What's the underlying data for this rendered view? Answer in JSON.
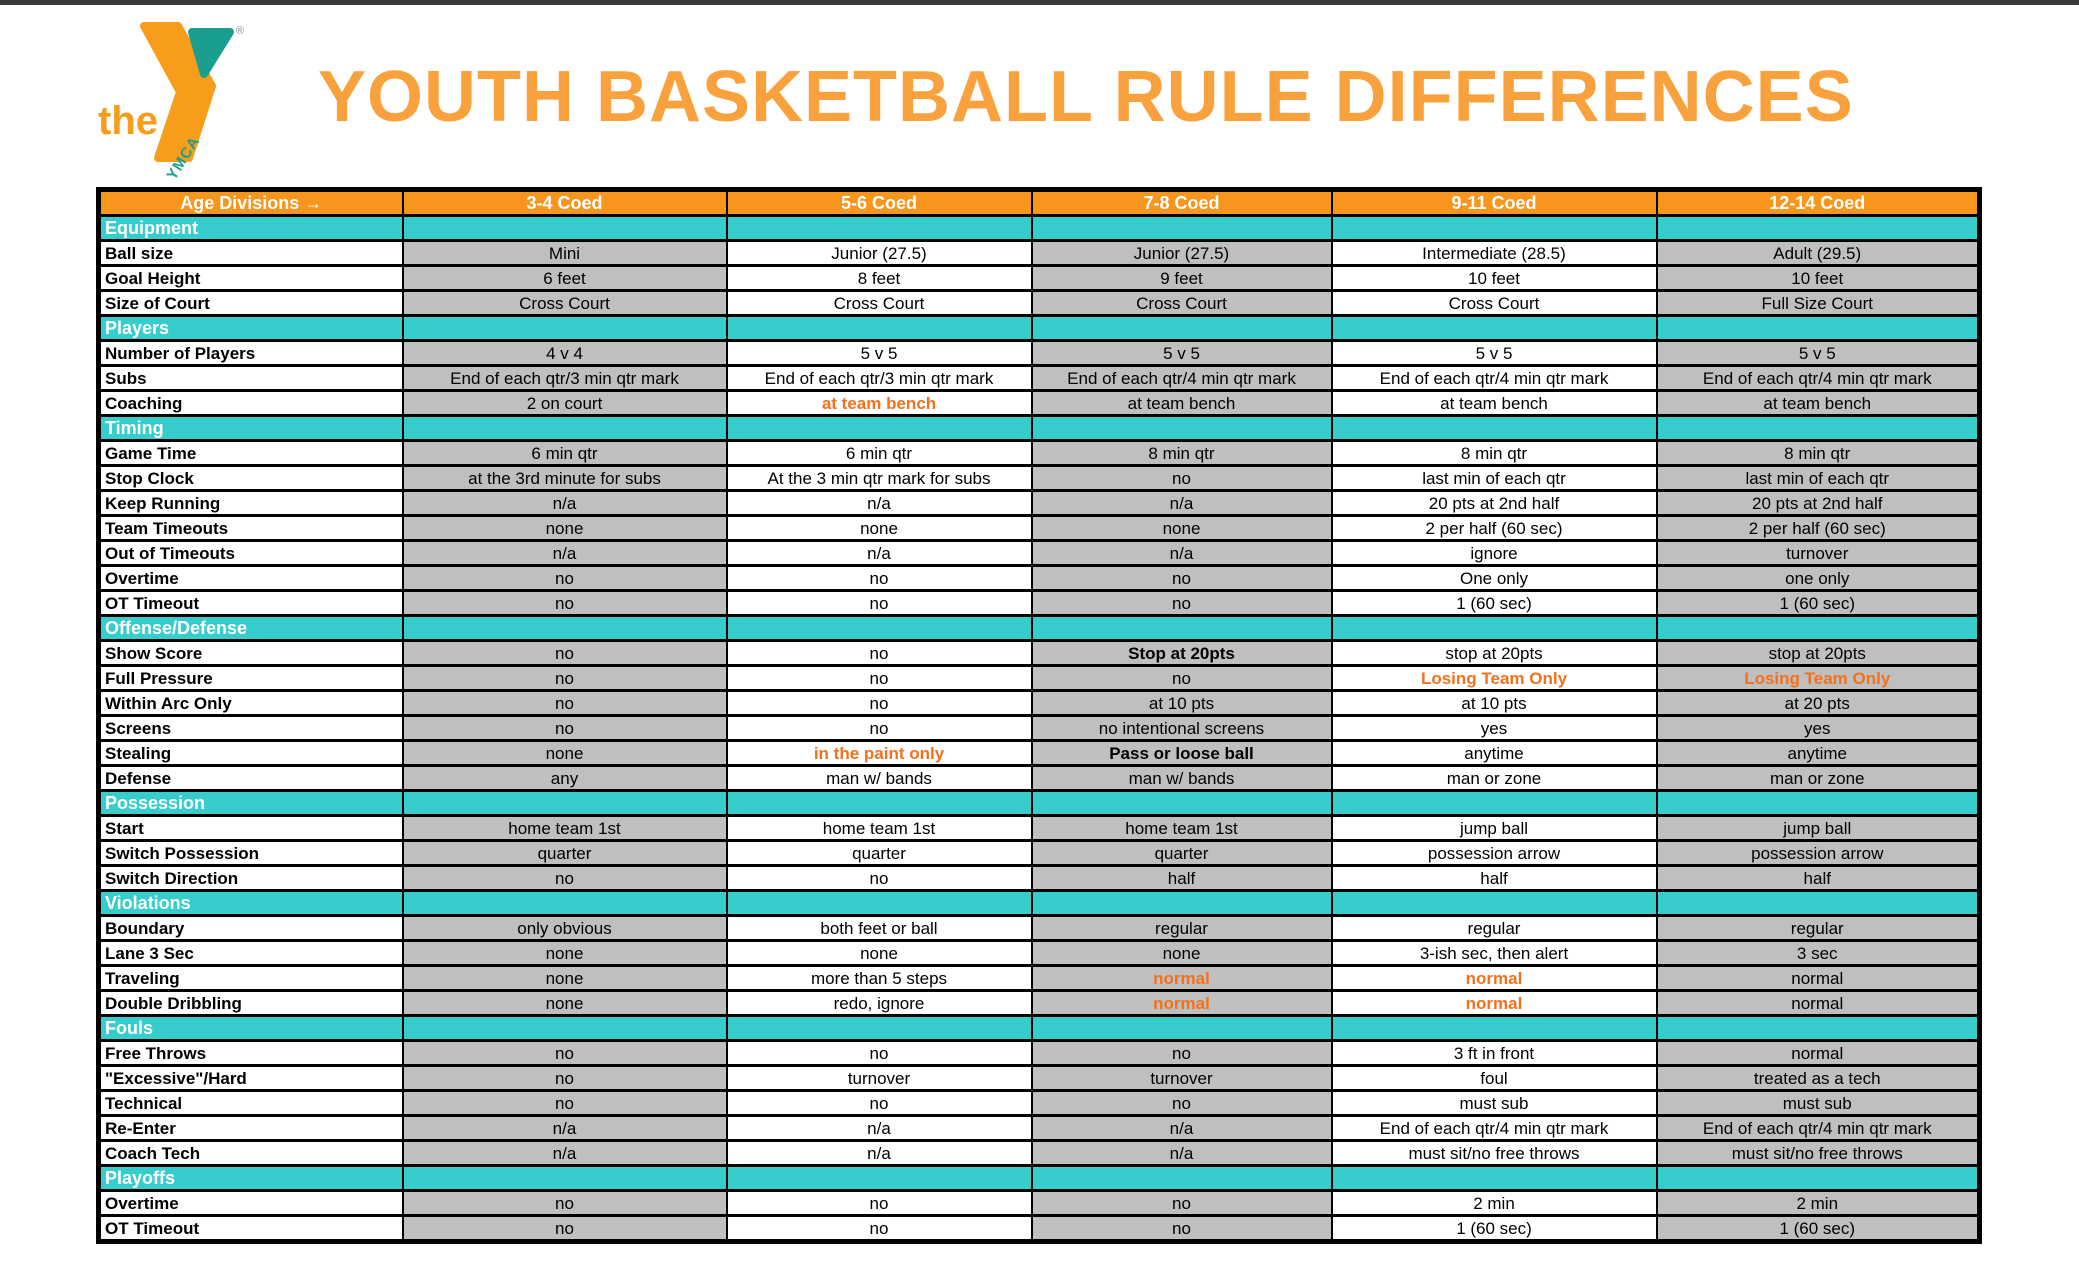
{
  "page": {
    "title": "YOUTH BASKETBALL RULE DIFFERENCES"
  },
  "logo": {
    "the": "the",
    "ymca": "YMCA",
    "registered": "®"
  },
  "colors": {
    "top_bar": "#3B3B3B",
    "title_color": "#F9A13D",
    "header_bg": "#F8951D",
    "section_bg": "#38CDCD",
    "cell_shade": "#BFBFBF",
    "accent_text": "#F4711C",
    "logo_orange": "#F89C1C",
    "logo_teal": "#1A9E8F"
  },
  "table": {
    "header": [
      "Age Divisions  →",
      "3-4 Coed",
      "5-6 Coed",
      "7-8 Coed",
      "9-11 Coed",
      "12-14 Coed"
    ],
    "sections": [
      {
        "name": "Equipment",
        "rows": [
          {
            "label": "Ball size",
            "cells": [
              "Mini",
              "Junior (27.5)",
              "Junior (27.5)",
              "Intermediate (28.5)",
              "Adult (29.5)"
            ]
          },
          {
            "label": "Goal Height",
            "cells": [
              "6 feet",
              "8 feet",
              "9 feet",
              "10 feet",
              "10 feet"
            ]
          },
          {
            "label": "Size of Court",
            "cells": [
              "Cross Court",
              "Cross Court",
              "Cross Court",
              "Cross Court",
              "Full Size Court"
            ]
          }
        ]
      },
      {
        "name": "Players",
        "rows": [
          {
            "label": "Number of Players",
            "cells": [
              "4 v 4",
              "5 v 5",
              "5 v 5",
              "5 v 5",
              "5 v 5"
            ]
          },
          {
            "label": "Subs",
            "cells": [
              "End of each qtr/3 min qtr mark",
              "End of each qtr/3 min qtr mark",
              "End of each qtr/4 min qtr mark",
              "End of each qtr/4 min qtr mark",
              "End of each qtr/4 min qtr mark"
            ]
          },
          {
            "label": "Coaching",
            "cells": [
              "2 on court",
              {
                "text": "at team bench",
                "style": "accent"
              },
              "at team bench",
              "at team bench",
              "at team bench"
            ]
          }
        ]
      },
      {
        "name": "Timing",
        "rows": [
          {
            "label": "Game Time",
            "cells": [
              "6 min qtr",
              "6 min qtr",
              "8 min qtr",
              "8 min qtr",
              "8 min qtr"
            ]
          },
          {
            "label": "Stop Clock",
            "cells": [
              "at the 3rd minute for subs",
              "At the 3 min qtr mark for subs",
              "no",
              "last min of each qtr",
              "last min of each qtr"
            ]
          },
          {
            "label": "Keep Running",
            "cells": [
              "n/a",
              "n/a",
              "n/a",
              "20 pts at 2nd half",
              "20 pts at 2nd half"
            ]
          },
          {
            "label": "Team Timeouts",
            "cells": [
              "none",
              "none",
              "none",
              "2 per half (60 sec)",
              "2 per half (60 sec)"
            ]
          },
          {
            "label": "Out of Timeouts",
            "cells": [
              "n/a",
              "n/a",
              "n/a",
              "ignore",
              "turnover"
            ]
          },
          {
            "label": "Overtime",
            "cells": [
              "no",
              "no",
              "no",
              "One only",
              "one only"
            ]
          },
          {
            "label": "OT Timeout",
            "cells": [
              "no",
              "no",
              "no",
              "1 (60 sec)",
              "1 (60 sec)"
            ]
          }
        ]
      },
      {
        "name": "Offense/Defense",
        "rows": [
          {
            "label": "Show Score",
            "cells": [
              "no",
              "no",
              {
                "text": "Stop at 20pts",
                "style": "bold"
              },
              "stop at 20pts",
              "stop at 20pts"
            ]
          },
          {
            "label": "Full Pressure",
            "cells": [
              "no",
              "no",
              "no",
              {
                "text": "Losing Team Only",
                "style": "accent"
              },
              {
                "text": "Losing Team Only",
                "style": "accent"
              }
            ]
          },
          {
            "label": "Within Arc Only",
            "cells": [
              "no",
              "no",
              "at 10 pts",
              "at 10 pts",
              "at 20 pts"
            ]
          },
          {
            "label": "Screens",
            "cells": [
              "no",
              "no",
              "no intentional screens",
              "yes",
              "yes"
            ]
          },
          {
            "label": "Stealing",
            "cells": [
              "none",
              {
                "text": "in the paint only",
                "style": "accent"
              },
              {
                "text": "Pass or loose ball",
                "style": "bold"
              },
              "anytime",
              "anytime"
            ]
          },
          {
            "label": "Defense",
            "cells": [
              "any",
              "man w/ bands",
              "man w/ bands",
              "man or zone",
              "man or zone"
            ]
          }
        ]
      },
      {
        "name": "Possession",
        "rows": [
          {
            "label": "Start",
            "cells": [
              "home team 1st",
              "home team 1st",
              "home team 1st",
              "jump ball",
              "jump ball"
            ]
          },
          {
            "label": "Switch Possession",
            "cells": [
              "quarter",
              "quarter",
              "quarter",
              "possession arrow",
              "possession arrow"
            ]
          },
          {
            "label": "Switch Direction",
            "cells": [
              "no",
              "no",
              "half",
              "half",
              "half"
            ]
          }
        ]
      },
      {
        "name": "Violations",
        "rows": [
          {
            "label": "Boundary",
            "cells": [
              "only obvious",
              "both feet or ball",
              "regular",
              "regular",
              "regular"
            ]
          },
          {
            "label": "Lane 3 Sec",
            "cells": [
              "none",
              "none",
              "none",
              "3-ish sec, then alert",
              "3 sec"
            ]
          },
          {
            "label": "Traveling",
            "cells": [
              "none",
              "more than 5 steps",
              {
                "text": "normal",
                "style": "accent"
              },
              {
                "text": "normal",
                "style": "accent"
              },
              "normal"
            ]
          },
          {
            "label": "Double Dribbling",
            "cells": [
              "none",
              "redo, ignore",
              {
                "text": "normal",
                "style": "accent"
              },
              {
                "text": "normal",
                "style": "accent"
              },
              "normal"
            ]
          }
        ]
      },
      {
        "name": "Fouls",
        "rows": [
          {
            "label": "Free Throws",
            "cells": [
              "no",
              "no",
              "no",
              "3 ft in front",
              "normal"
            ]
          },
          {
            "label": "\"Excessive\"/Hard",
            "cells": [
              "no",
              "turnover",
              "turnover",
              "foul",
              "treated as a tech"
            ]
          },
          {
            "label": "Technical",
            "cells": [
              "no",
              "no",
              "no",
              "must sub",
              "must sub"
            ]
          },
          {
            "label": "Re-Enter",
            "cells": [
              "n/a",
              "n/a",
              "n/a",
              "End of each qtr/4 min qtr mark",
              "End of each qtr/4 min qtr mark"
            ]
          },
          {
            "label": "Coach Tech",
            "cells": [
              "n/a",
              "n/a",
              "n/a",
              "must sit/no free throws",
              "must sit/no free throws"
            ]
          }
        ]
      },
      {
        "name": "Playoffs",
        "rows": [
          {
            "label": "Overtime",
            "cells": [
              "no",
              "no",
              "no",
              "2 min",
              "2 min"
            ]
          },
          {
            "label": "OT Timeout",
            "cells": [
              "no",
              "no",
              "no",
              "1 (60 sec)",
              "1 (60 sec)"
            ]
          }
        ]
      }
    ]
  }
}
